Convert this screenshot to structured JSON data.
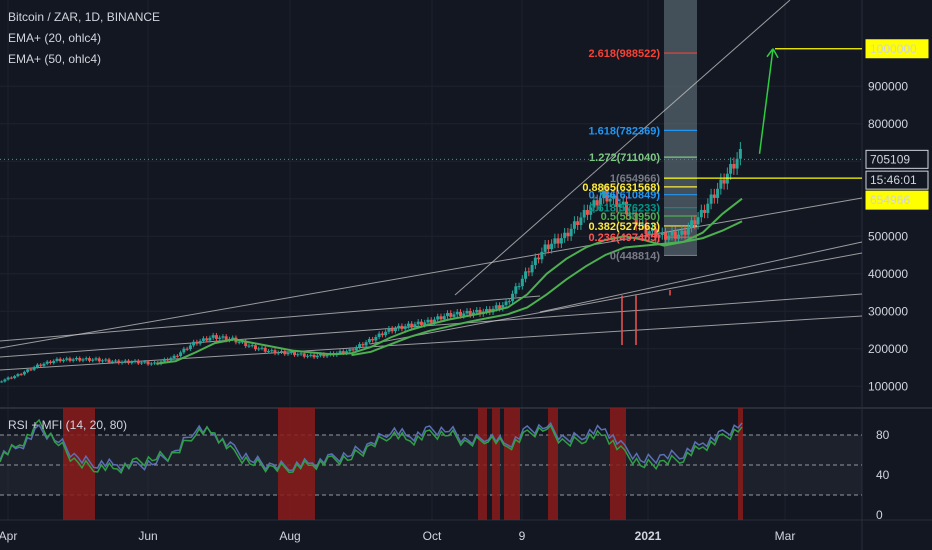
{
  "header": {
    "symbol_line": "Bitcoin / ZAR, 1D, BINANCE",
    "ema_20": "EMA+ (20, ohlc4)",
    "ema_50": "EMA+ (50, ohlc4)",
    "rsi_label": "RSI + MFI (14, 20, 80)"
  },
  "colors": {
    "background": "#131722",
    "grid": "#1e222d",
    "text": "#d1d4dc",
    "up": "#26a69a",
    "down": "#ef5350",
    "ema": "#4caf50",
    "trend": "#c8c8c8",
    "target_line": "#ffff00",
    "arrow": "#2ecc40",
    "rsi": "#5b6fb5",
    "mfi": "#2ea043",
    "overbought_fill": "#8b1a1a"
  },
  "chart_data": [
    {
      "type": "candlestick",
      "title": "Bitcoin / ZAR, 1D, BINANCE",
      "xlabel": "",
      "ylabel": "",
      "ylim": [
        50000,
        1130000
      ],
      "x_ticks": [
        "Apr",
        "Jun",
        "Aug",
        "Oct",
        "9",
        "2021",
        "Mar"
      ],
      "y_ticks": [
        100000,
        200000,
        300000,
        400000,
        500000,
        600000,
        700000,
        800000,
        900000
      ],
      "price_labels": [
        {
          "text": "1000000",
          "value": 1000000,
          "style": "yellow"
        },
        {
          "text": "705109",
          "value": 705109,
          "style": "dark"
        },
        {
          "text": "15:46:01",
          "value": 665000,
          "style": "dark"
        },
        {
          "text": "654966",
          "value": 654966,
          "style": "yellow"
        }
      ],
      "fib_levels": [
        {
          "label": "2.618(988522)",
          "value": 988522,
          "color": "#f44336"
        },
        {
          "label": "1.618(782369)",
          "value": 782369,
          "color": "#2196f3"
        },
        {
          "label": "1.272(711040)",
          "value": 711040,
          "color": "#81c784"
        },
        {
          "label": "1(654966)",
          "value": 654966,
          "color": "#787b86"
        },
        {
          "label": "0.8865(631568)",
          "value": 631568,
          "color": "#ffeb3b"
        },
        {
          "label": "0.786(610849)",
          "value": 610849,
          "color": "#2196f3"
        },
        {
          "label": "0.618(576233)",
          "value": 576233,
          "color": "#009688"
        },
        {
          "label": "0.5(553950)",
          "value": 553950,
          "color": "#4caf50"
        },
        {
          "label": "0.382(527563)",
          "value": 527563,
          "color": "#ffeb3b"
        },
        {
          "label": "0.236(497465)",
          "value": 497465,
          "color": "#ff5252"
        },
        {
          "label": "0(448814)",
          "value": 448814,
          "color": "#787b86"
        }
      ],
      "price_series": [
        {
          "name": "",
          "values": [
            112000,
            130000,
            155000,
            170000,
            172000,
            171000,
            165000,
            165000,
            160000,
            178000,
            215000,
            232000,
            225000,
            205000,
            192000,
            188000,
            180000,
            185000,
            195000,
            222000,
            250000,
            262000,
            272000,
            290000,
            295000,
            300000,
            320000,
            400000,
            470000,
            500000,
            560000,
            610000,
            580000,
            520000,
            500000,
            505000,
            560000,
            640000,
            720000
          ]
        },
        {
          "name": "EMA+ (20, ohlc4)",
          "values": [
            null,
            null,
            null,
            null,
            null,
            null,
            null,
            null,
            160000,
            167000,
            190000,
            215000,
            225000,
            215000,
            205000,
            195000,
            190000,
            185000,
            188000,
            205000,
            230000,
            250000,
            265000,
            278000,
            288000,
            298000,
            310000,
            345000,
            400000,
            440000,
            470000,
            490000,
            500000,
            490000,
            475000,
            485000,
            510000,
            560000,
            600000
          ]
        },
        {
          "name": "EMA+ (50, ohlc4)",
          "values": [
            null,
            null,
            null,
            null,
            null,
            null,
            null,
            null,
            null,
            null,
            null,
            null,
            null,
            null,
            null,
            null,
            null,
            null,
            183000,
            192000,
            212000,
            232000,
            248000,
            260000,
            272000,
            282000,
            292000,
            310000,
            345000,
            385000,
            420000,
            450000,
            470000,
            475000,
            480000,
            485000,
            495000,
            515000,
            540000
          ]
        }
      ],
      "projection": [
        {
          "x_index": 39,
          "value": 720000
        },
        {
          "x_index": 41,
          "value": 1000000
        }
      ]
    },
    {
      "type": "line",
      "title": "RSI + MFI (14, 20, 80)",
      "xlabel": "",
      "ylabel": "",
      "ylim": [
        -5,
        105
      ],
      "y_ticks": [
        0,
        40,
        80
      ],
      "bands": [
        20,
        50,
        80
      ],
      "series": [
        {
          "name": "RSI",
          "values": [
            60,
            68,
            85,
            75,
            55,
            52,
            50,
            48,
            54,
            62,
            88,
            80,
            65,
            55,
            48,
            50,
            52,
            56,
            62,
            70,
            86,
            78,
            84,
            86,
            72,
            80,
            70,
            84,
            90,
            74,
            82,
            86,
            65,
            55,
            58,
            62,
            72,
            80,
            92
          ]
        },
        {
          "name": "MFI",
          "values": [
            58,
            70,
            90,
            72,
            50,
            48,
            46,
            52,
            58,
            60,
            84,
            82,
            60,
            52,
            46,
            48,
            50,
            54,
            58,
            68,
            82,
            74,
            80,
            82,
            70,
            78,
            68,
            80,
            88,
            70,
            78,
            80,
            60,
            50,
            52,
            58,
            68,
            76,
            88
          ]
        }
      ]
    }
  ]
}
